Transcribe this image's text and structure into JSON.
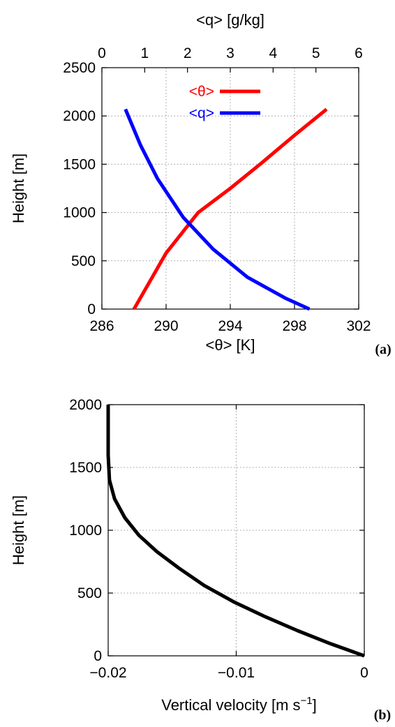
{
  "chart_data": [
    {
      "id": "a",
      "type": "line",
      "panel_label": "(a)",
      "ylabel": "Height [m]",
      "xlabel_bottom": "<θ> [K]",
      "xlabel_top": "<q> [g/kg]",
      "xlim_bottom": [
        286,
        302
      ],
      "xlim_top": [
        0,
        6
      ],
      "ylim": [
        0,
        2500
      ],
      "xticks_bottom": [
        286,
        290,
        294,
        298,
        302
      ],
      "xticks_top": [
        0,
        1,
        2,
        3,
        4,
        5,
        6
      ],
      "yticks": [
        0,
        500,
        1000,
        1500,
        2000,
        2500
      ],
      "grid": true,
      "legend_position": "top-center",
      "series": [
        {
          "name": "<θ>",
          "axis": "bottom",
          "color": "#ff0000",
          "x": [
            288.0,
            290.0,
            292.0,
            294.0,
            296.0,
            298.0,
            300.0
          ],
          "y": [
            0,
            580,
            1000,
            1250,
            1520,
            1800,
            2070
          ]
        },
        {
          "name": "<q>",
          "axis": "top",
          "color": "#0000ff",
          "x": [
            0.55,
            0.9,
            1.3,
            1.9,
            2.6,
            3.4,
            4.3,
            4.85
          ],
          "y": [
            2070,
            1700,
            1350,
            950,
            620,
            330,
            110,
            0
          ]
        }
      ]
    },
    {
      "id": "b",
      "type": "line",
      "panel_label": "(b)",
      "ylabel": "Height [m]",
      "xlabel": "Vertical velocity [m s",
      "xlabel_sup": "−1",
      "xlabel_end": "]",
      "xlim": [
        -0.02,
        0
      ],
      "ylim": [
        0,
        2000
      ],
      "xticks": [
        -0.02,
        -0.01,
        0
      ],
      "xtick_labels": [
        "−0.02",
        "−0.01",
        "0"
      ],
      "yticks": [
        0,
        500,
        1000,
        1500,
        2000
      ],
      "grid": true,
      "series": [
        {
          "color": "#000000",
          "x": [
            -0.02,
            -0.02,
            -0.0199,
            -0.0195,
            -0.0187,
            -0.0176,
            -0.0162,
            -0.0145,
            -0.0125,
            -0.0102,
            -0.0077,
            -0.0052,
            -0.0026,
            0.0
          ],
          "y": [
            2000,
            1600,
            1400,
            1250,
            1100,
            960,
            830,
            700,
            560,
            430,
            310,
            200,
            95,
            0
          ]
        }
      ]
    }
  ]
}
